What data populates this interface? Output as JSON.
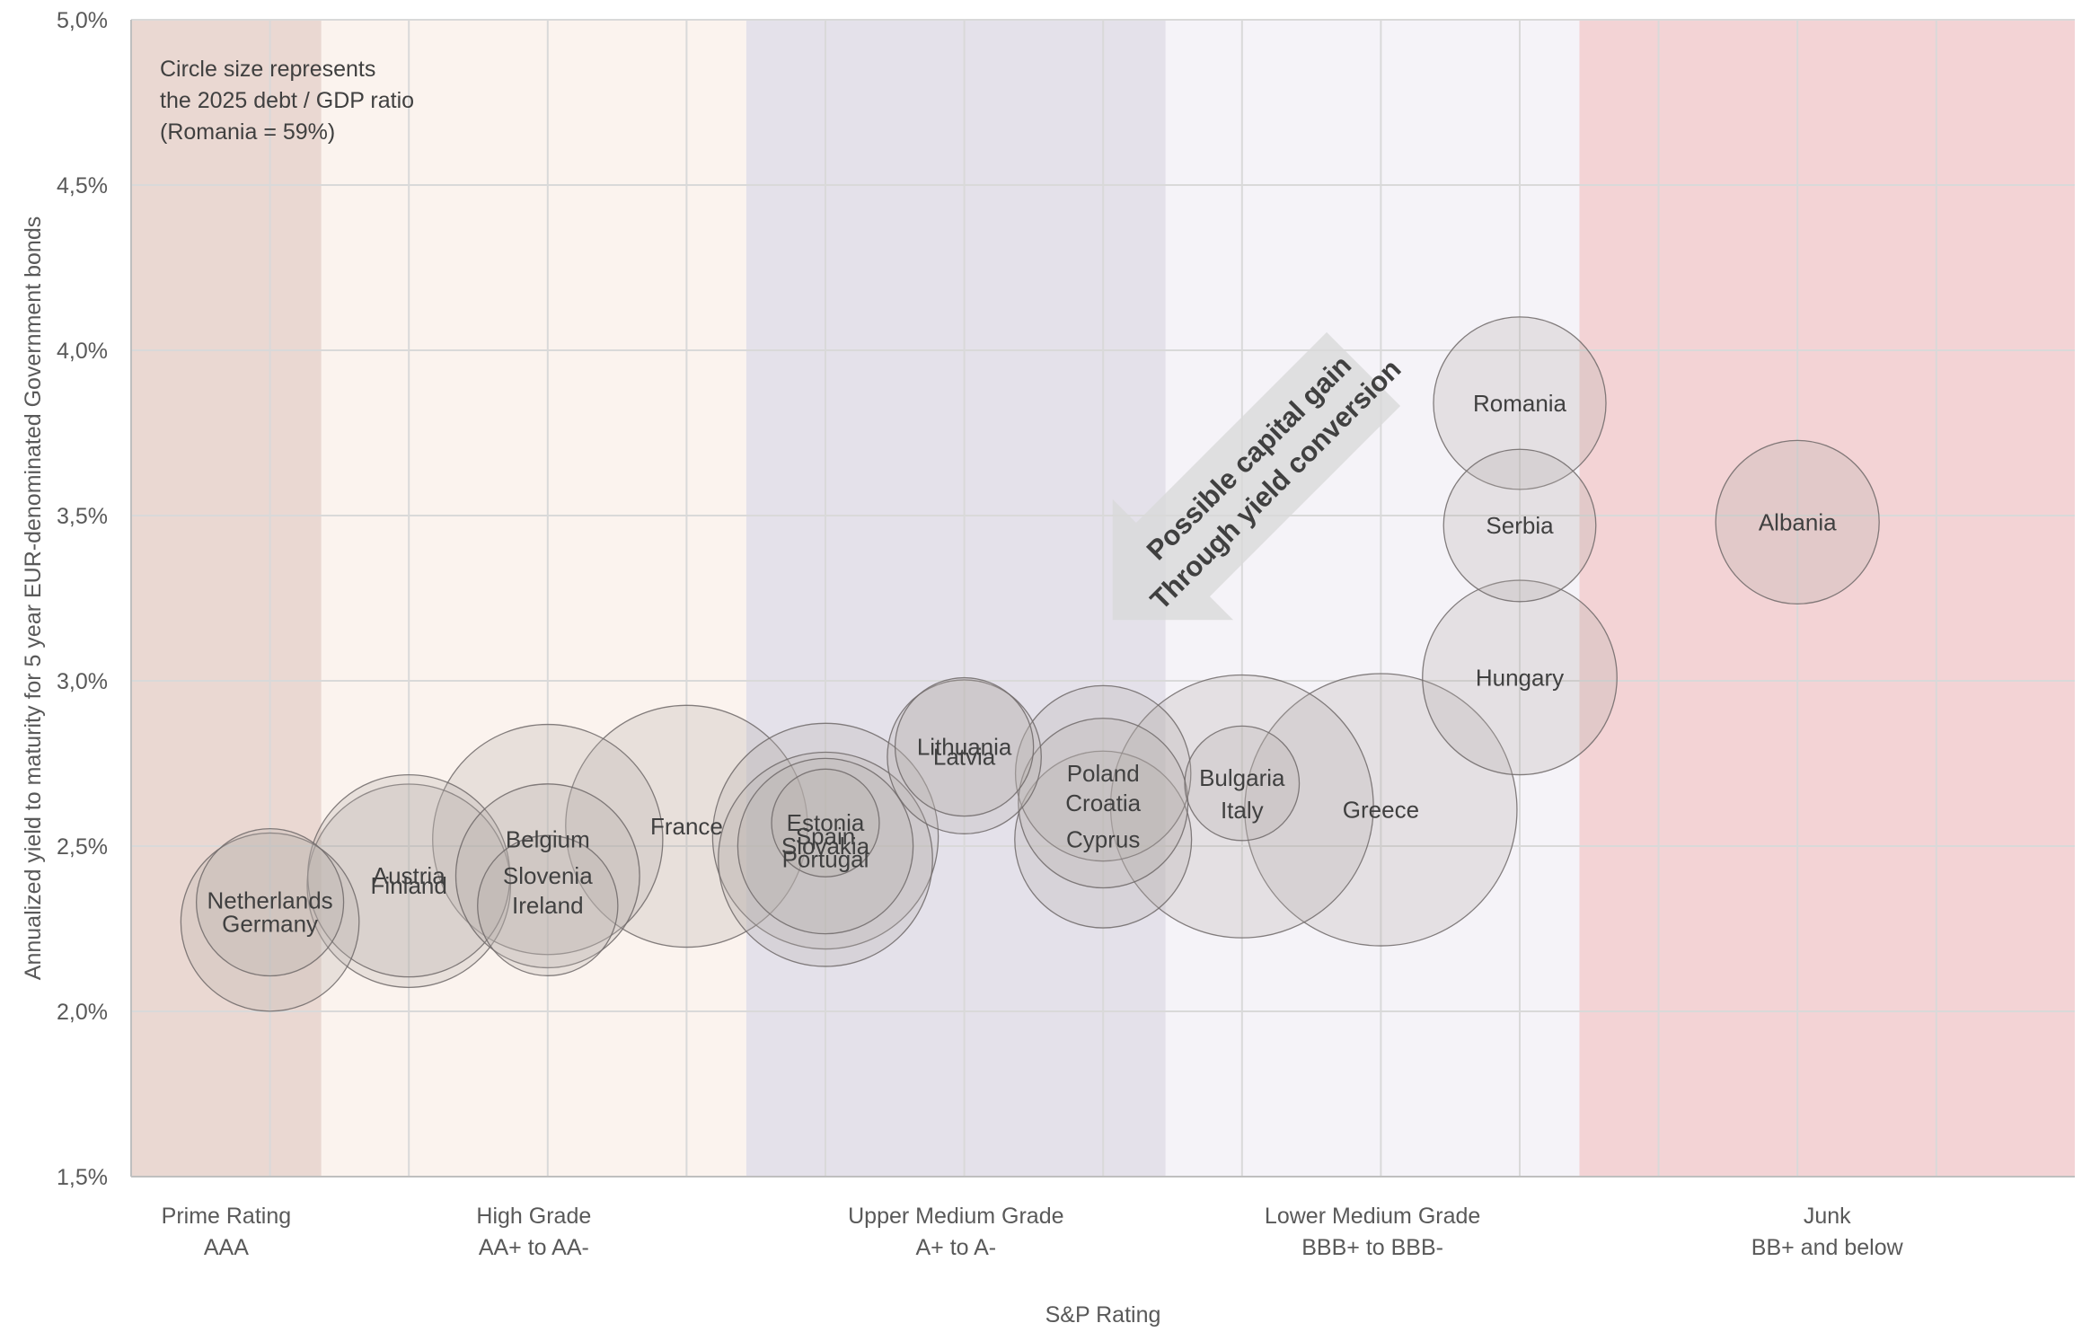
{
  "chart_data": {
    "type": "bubble",
    "ylabel": "Annualized yield to maturity for 5 year EUR-denominated Government bonds",
    "xlabel": "S&P Rating",
    "ylim": [
      1.5,
      5.0
    ],
    "xlim": [
      0,
      14
    ],
    "yticks": [
      "1,5%",
      "2,0%",
      "2,5%",
      "3,0%",
      "3,5%",
      "4,0%",
      "4,5%",
      "5,0%"
    ],
    "grid": true,
    "note": [
      "Circle size represents",
      "the 2025 debt / GDP ratio",
      "(Romania = 59%)"
    ],
    "annotation": [
      "Possible capital gain",
      "Through yield conversion"
    ],
    "rating_bands": [
      {
        "line1": "Prime Rating",
        "line2": "AAA",
        "x_from": 0,
        "x_to": 1.37,
        "color": "#ead8d2"
      },
      {
        "line1": "High Grade",
        "line2": "AA+ to AA-",
        "x_from": 1.37,
        "x_to": 4.43,
        "color": "#fbf3ee"
      },
      {
        "line1": "Upper Medium Grade",
        "line2": "A+ to A-",
        "x_from": 4.43,
        "x_to": 7.45,
        "color": "#e4e1ea"
      },
      {
        "line1": "Lower Medium Grade",
        "line2": "BBB+ to BBB-",
        "x_from": 7.45,
        "x_to": 10.43,
        "color": "#f5f3f8"
      },
      {
        "line1": "Junk",
        "line2": "BB+ and below",
        "x_from": 10.43,
        "x_to": 14,
        "color": "#f3d3d5"
      }
    ],
    "bubbles": [
      {
        "name": "Netherlands",
        "x": 1,
        "y": 2.33,
        "debt_gdp": 43,
        "label_dy": -2
      },
      {
        "name": "Germany",
        "x": 1,
        "y": 2.27,
        "debt_gdp": 63,
        "label_dy": 2
      },
      {
        "name": "Austria",
        "x": 2,
        "y": 2.41,
        "debt_gdp": 81,
        "label_dy": 0
      },
      {
        "name": "Finland",
        "x": 2,
        "y": 2.38,
        "debt_gdp": 82,
        "label_dy": 0
      },
      {
        "name": "Belgium",
        "x": 3,
        "y": 2.52,
        "debt_gdp": 105,
        "label_dy": 0
      },
      {
        "name": "Slovenia",
        "x": 3,
        "y": 2.41,
        "debt_gdp": 67,
        "label_dy": 0
      },
      {
        "name": "Ireland",
        "x": 3,
        "y": 2.32,
        "debt_gdp": 39,
        "label_dy": 0
      },
      {
        "name": "France",
        "x": 4,
        "y": 2.56,
        "debt_gdp": 116,
        "label_dy": 0
      },
      {
        "name": "Estonia",
        "x": 5,
        "y": 2.57,
        "debt_gdp": 23,
        "label_dy": 0
      },
      {
        "name": "Spain",
        "x": 5,
        "y": 2.53,
        "debt_gdp": 101,
        "label_dy": 0
      },
      {
        "name": "Slovakia",
        "x": 5,
        "y": 2.5,
        "debt_gdp": 61,
        "label_dy": 0
      },
      {
        "name": "Portugal",
        "x": 5,
        "y": 2.46,
        "debt_gdp": 91,
        "label_dy": 0
      },
      {
        "name": "Lithuania",
        "x": 6,
        "y": 2.8,
        "debt_gdp": 38,
        "label_dy": 0
      },
      {
        "name": "Latvia",
        "x": 6,
        "y": 2.77,
        "debt_gdp": 47,
        "label_dy": 0
      },
      {
        "name": "Poland",
        "x": 7,
        "y": 2.72,
        "debt_gdp": 61,
        "label_dy": 0
      },
      {
        "name": "Croatia",
        "x": 7,
        "y": 2.63,
        "debt_gdp": 57,
        "label_dy": 0
      },
      {
        "name": "Cyprus",
        "x": 7,
        "y": 2.52,
        "debt_gdp": 62,
        "label_dy": 0
      },
      {
        "name": "Bulgaria",
        "x": 8,
        "y": 2.69,
        "debt_gdp": 26,
        "label_dy": -6
      },
      {
        "name": "Italy",
        "x": 8,
        "y": 2.62,
        "debt_gdp": 137,
        "label_dy": 4
      },
      {
        "name": "Greece",
        "x": 9,
        "y": 2.61,
        "debt_gdp": 147,
        "label_dy": 0
      },
      {
        "name": "Romania",
        "x": 10,
        "y": 3.84,
        "debt_gdp": 59,
        "highlight": "#e0201a",
        "label_dy": 0
      },
      {
        "name": "Serbia",
        "x": 10,
        "y": 3.47,
        "debt_gdp": 46,
        "label_dy": 0
      },
      {
        "name": "Hungary",
        "x": 10,
        "y": 3.01,
        "debt_gdp": 75,
        "label_dy": 0
      },
      {
        "name": "Albania",
        "x": 12,
        "y": 3.48,
        "debt_gdp": 53,
        "label_dy": 0
      }
    ]
  }
}
